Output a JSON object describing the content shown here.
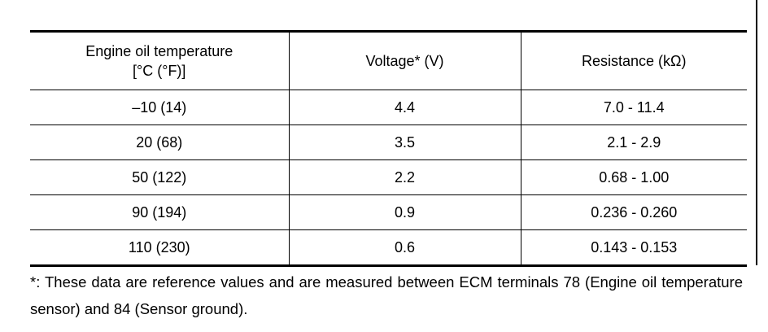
{
  "table": {
    "header": [
      [
        "Engine oil temperature",
        "[°C (°F)]"
      ],
      [
        "Voltage* (V)"
      ],
      [
        "Resistance (kΩ)"
      ]
    ],
    "rows": [
      [
        "–10 (14)",
        "4.4",
        "7.0 - 11.4"
      ],
      [
        "20 (68)",
        "3.5",
        "2.1 - 2.9"
      ],
      [
        "50 (122)",
        "2.2",
        "0.68 - 1.00"
      ],
      [
        "90 (194)",
        "0.9",
        "0.236 - 0.260"
      ],
      [
        "110 (230)",
        "0.6",
        "0.143 - 0.153"
      ]
    ]
  },
  "footnote": "*: These data are reference values and are measured between ECM terminals 78 (Engine oil temperature sensor) and 84 (Sensor ground)."
}
